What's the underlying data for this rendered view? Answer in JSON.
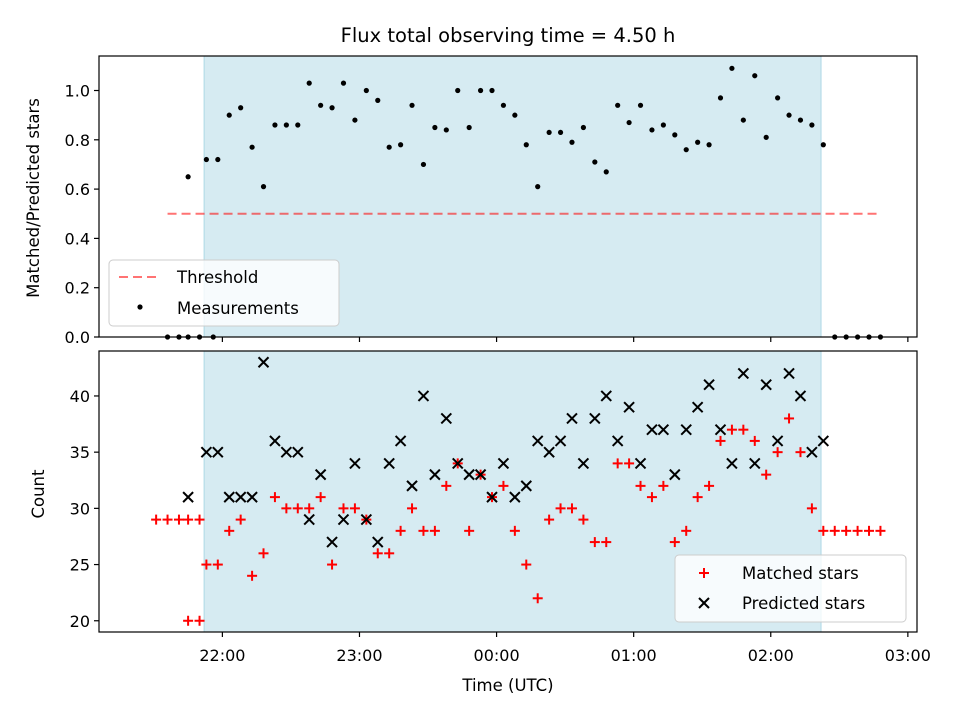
{
  "chart_data": [
    {
      "type": "scatter",
      "title": "Flux total observing time = 4.50 h",
      "xlabel": "",
      "ylabel": "Matched/Predicted stars",
      "ylim": [
        0,
        1.14
      ],
      "y_ticks": [
        "0.0",
        "0.2",
        "0.4",
        "0.6",
        "0.8",
        "1.0"
      ],
      "x_ticks": [
        "22:00",
        "23:00",
        "00:00",
        "01:00",
        "02:00",
        "03:00"
      ],
      "xlim": [
        "21:06",
        "03:04"
      ],
      "shaded_region": [
        "21:52",
        "02:22"
      ],
      "shaded_color": "#add8e6",
      "legend_position": "lower-left",
      "threshold": {
        "name": "Threshold",
        "value": 0.5,
        "x_range": [
          "21:36",
          "02:48"
        ],
        "color": "#ff0000"
      },
      "series": [
        {
          "name": "Measurements",
          "color": "#000000",
          "marker": "dot",
          "points": [
            [
              "21:36",
              0.0
            ],
            [
              "21:41",
              0.0
            ],
            [
              "21:45",
              0.0
            ],
            [
              "21:50",
              0.0
            ],
            [
              "21:45",
              0.65
            ],
            [
              "21:56",
              0.0
            ],
            [
              "21:53",
              0.72
            ],
            [
              "21:58",
              0.72
            ],
            [
              "22:03",
              0.9
            ],
            [
              "22:08",
              0.93
            ],
            [
              "22:13",
              0.77
            ],
            [
              "22:18",
              0.61
            ],
            [
              "22:23",
              0.86
            ],
            [
              "22:28",
              0.86
            ],
            [
              "22:33",
              0.86
            ],
            [
              "22:38",
              1.03
            ],
            [
              "22:43",
              0.94
            ],
            [
              "22:48",
              0.93
            ],
            [
              "22:53",
              1.03
            ],
            [
              "22:58",
              0.88
            ],
            [
              "23:03",
              1.0
            ],
            [
              "23:08",
              0.96
            ],
            [
              "23:13",
              0.77
            ],
            [
              "23:18",
              0.78
            ],
            [
              "23:23",
              0.94
            ],
            [
              "23:28",
              0.7
            ],
            [
              "23:33",
              0.85
            ],
            [
              "23:38",
              0.84
            ],
            [
              "23:43",
              1.0
            ],
            [
              "23:48",
              0.85
            ],
            [
              "23:53",
              1.0
            ],
            [
              "23:58",
              1.0
            ],
            [
              "00:03",
              0.94
            ],
            [
              "00:08",
              0.9
            ],
            [
              "00:13",
              0.78
            ],
            [
              "00:18",
              0.61
            ],
            [
              "00:23",
              0.83
            ],
            [
              "00:28",
              0.83
            ],
            [
              "00:33",
              0.79
            ],
            [
              "00:38",
              0.85
            ],
            [
              "00:43",
              0.71
            ],
            [
              "00:48",
              0.67
            ],
            [
              "00:53",
              0.94
            ],
            [
              "00:58",
              0.87
            ],
            [
              "01:03",
              0.94
            ],
            [
              "01:08",
              0.84
            ],
            [
              "01:13",
              0.86
            ],
            [
              "01:18",
              0.82
            ],
            [
              "01:23",
              0.76
            ],
            [
              "01:28",
              0.79
            ],
            [
              "01:33",
              0.78
            ],
            [
              "01:38",
              0.97
            ],
            [
              "01:43",
              1.09
            ],
            [
              "01:48",
              0.88
            ],
            [
              "01:53",
              1.06
            ],
            [
              "01:58",
              0.81
            ],
            [
              "02:03",
              0.97
            ],
            [
              "02:08",
              0.9
            ],
            [
              "02:13",
              0.88
            ],
            [
              "02:18",
              0.86
            ],
            [
              "02:23",
              0.78
            ],
            [
              "02:28",
              0.0
            ],
            [
              "02:33",
              0.0
            ],
            [
              "02:38",
              0.0
            ],
            [
              "02:43",
              0.0
            ],
            [
              "02:48",
              0.0
            ]
          ]
        }
      ]
    },
    {
      "type": "scatter",
      "xlabel": "Time (UTC)",
      "ylabel": "Count",
      "ylim": [
        19,
        44
      ],
      "y_ticks": [
        "20",
        "25",
        "30",
        "35",
        "40"
      ],
      "x_ticks": [
        "22:00",
        "23:00",
        "00:00",
        "01:00",
        "02:00",
        "03:00"
      ],
      "xlim": [
        "21:06",
        "03:04"
      ],
      "shaded_region": [
        "21:52",
        "02:22"
      ],
      "shaded_color": "#add8e6",
      "legend_position": "lower-right",
      "series": [
        {
          "name": "Matched stars",
          "color": "#ff0000",
          "marker": "plus",
          "points": [
            [
              "21:31",
              29
            ],
            [
              "21:36",
              29
            ],
            [
              "21:41",
              29
            ],
            [
              "21:45",
              29
            ],
            [
              "21:50",
              29
            ],
            [
              "21:45",
              20
            ],
            [
              "21:50",
              20
            ],
            [
              "21:53",
              25
            ],
            [
              "21:58",
              25
            ],
            [
              "22:03",
              28
            ],
            [
              "22:08",
              29
            ],
            [
              "22:13",
              24
            ],
            [
              "22:18",
              26
            ],
            [
              "22:23",
              31
            ],
            [
              "22:28",
              30
            ],
            [
              "22:33",
              30
            ],
            [
              "22:38",
              30
            ],
            [
              "22:43",
              31
            ],
            [
              "22:48",
              25
            ],
            [
              "22:53",
              30
            ],
            [
              "22:58",
              30
            ],
            [
              "23:03",
              29
            ],
            [
              "23:08",
              26
            ],
            [
              "23:13",
              26
            ],
            [
              "23:18",
              28
            ],
            [
              "23:23",
              30
            ],
            [
              "23:28",
              28
            ],
            [
              "23:33",
              28
            ],
            [
              "23:38",
              32
            ],
            [
              "23:43",
              34
            ],
            [
              "23:48",
              28
            ],
            [
              "23:53",
              33
            ],
            [
              "23:58",
              31
            ],
            [
              "00:03",
              32
            ],
            [
              "00:08",
              28
            ],
            [
              "00:13",
              25
            ],
            [
              "00:18",
              22
            ],
            [
              "00:23",
              29
            ],
            [
              "00:28",
              30
            ],
            [
              "00:33",
              30
            ],
            [
              "00:38",
              29
            ],
            [
              "00:43",
              27
            ],
            [
              "00:48",
              27
            ],
            [
              "00:53",
              34
            ],
            [
              "00:58",
              34
            ],
            [
              "01:03",
              32
            ],
            [
              "01:08",
              31
            ],
            [
              "01:13",
              32
            ],
            [
              "01:18",
              27
            ],
            [
              "01:23",
              28
            ],
            [
              "01:28",
              31
            ],
            [
              "01:33",
              32
            ],
            [
              "01:38",
              36
            ],
            [
              "01:43",
              37
            ],
            [
              "01:48",
              37
            ],
            [
              "01:53",
              36
            ],
            [
              "01:58",
              33
            ],
            [
              "02:03",
              35
            ],
            [
              "02:08",
              38
            ],
            [
              "02:13",
              35
            ],
            [
              "02:18",
              30
            ],
            [
              "02:23",
              28
            ],
            [
              "02:28",
              28
            ],
            [
              "02:33",
              28
            ],
            [
              "02:38",
              28
            ],
            [
              "02:43",
              28
            ],
            [
              "02:48",
              28
            ]
          ]
        },
        {
          "name": "Predicted stars",
          "color": "#000000",
          "marker": "x",
          "points": [
            [
              "21:45",
              31
            ],
            [
              "21:53",
              35
            ],
            [
              "21:58",
              35
            ],
            [
              "22:03",
              31
            ],
            [
              "22:08",
              31
            ],
            [
              "22:13",
              31
            ],
            [
              "22:18",
              43
            ],
            [
              "22:23",
              36
            ],
            [
              "22:28",
              35
            ],
            [
              "22:33",
              35
            ],
            [
              "22:38",
              29
            ],
            [
              "22:43",
              33
            ],
            [
              "22:48",
              27
            ],
            [
              "22:53",
              29
            ],
            [
              "22:58",
              34
            ],
            [
              "23:03",
              29
            ],
            [
              "23:08",
              27
            ],
            [
              "23:13",
              34
            ],
            [
              "23:18",
              36
            ],
            [
              "23:23",
              32
            ],
            [
              "23:28",
              40
            ],
            [
              "23:33",
              33
            ],
            [
              "23:38",
              38
            ],
            [
              "23:43",
              34
            ],
            [
              "23:48",
              33
            ],
            [
              "23:53",
              33
            ],
            [
              "23:58",
              31
            ],
            [
              "00:03",
              34
            ],
            [
              "00:08",
              31
            ],
            [
              "00:13",
              32
            ],
            [
              "00:18",
              36
            ],
            [
              "00:23",
              35
            ],
            [
              "00:28",
              36
            ],
            [
              "00:33",
              38
            ],
            [
              "00:38",
              34
            ],
            [
              "00:43",
              38
            ],
            [
              "00:48",
              40
            ],
            [
              "00:53",
              36
            ],
            [
              "00:58",
              39
            ],
            [
              "01:03",
              34
            ],
            [
              "01:08",
              37
            ],
            [
              "01:13",
              37
            ],
            [
              "01:18",
              33
            ],
            [
              "01:23",
              37
            ],
            [
              "01:28",
              39
            ],
            [
              "01:33",
              41
            ],
            [
              "01:38",
              37
            ],
            [
              "01:43",
              34
            ],
            [
              "01:48",
              42
            ],
            [
              "01:53",
              34
            ],
            [
              "01:58",
              41
            ],
            [
              "02:03",
              36
            ],
            [
              "02:08",
              42
            ],
            [
              "02:13",
              40
            ],
            [
              "02:18",
              35
            ],
            [
              "02:23",
              36
            ]
          ]
        }
      ]
    }
  ]
}
